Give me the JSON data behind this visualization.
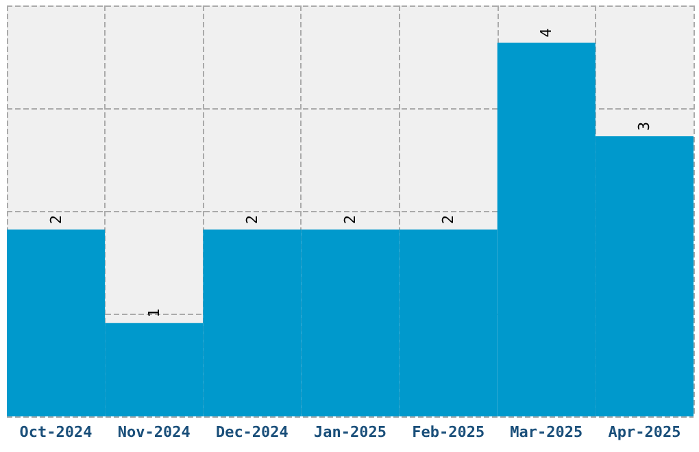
{
  "chart_data": {
    "type": "bar",
    "categories": [
      "Oct-2024",
      "Nov-2024",
      "Dec-2024",
      "Jan-2025",
      "Feb-2025",
      "Mar-2025",
      "Apr-2025"
    ],
    "values": [
      2,
      1,
      2,
      2,
      2,
      4,
      3
    ],
    "color": "#0099cc",
    "ylim": [
      0,
      4.4
    ],
    "yticks": [
      {
        "value": 0,
        "label": null
      },
      {
        "value": 1.1,
        "label": null
      },
      {
        "value": 2.2,
        "label": null
      },
      {
        "value": 3.3,
        "label": null
      },
      {
        "value": 4.4,
        "label": null
      }
    ],
    "tick_labels": "x",
    "grid": true,
    "data_labels": true
  }
}
